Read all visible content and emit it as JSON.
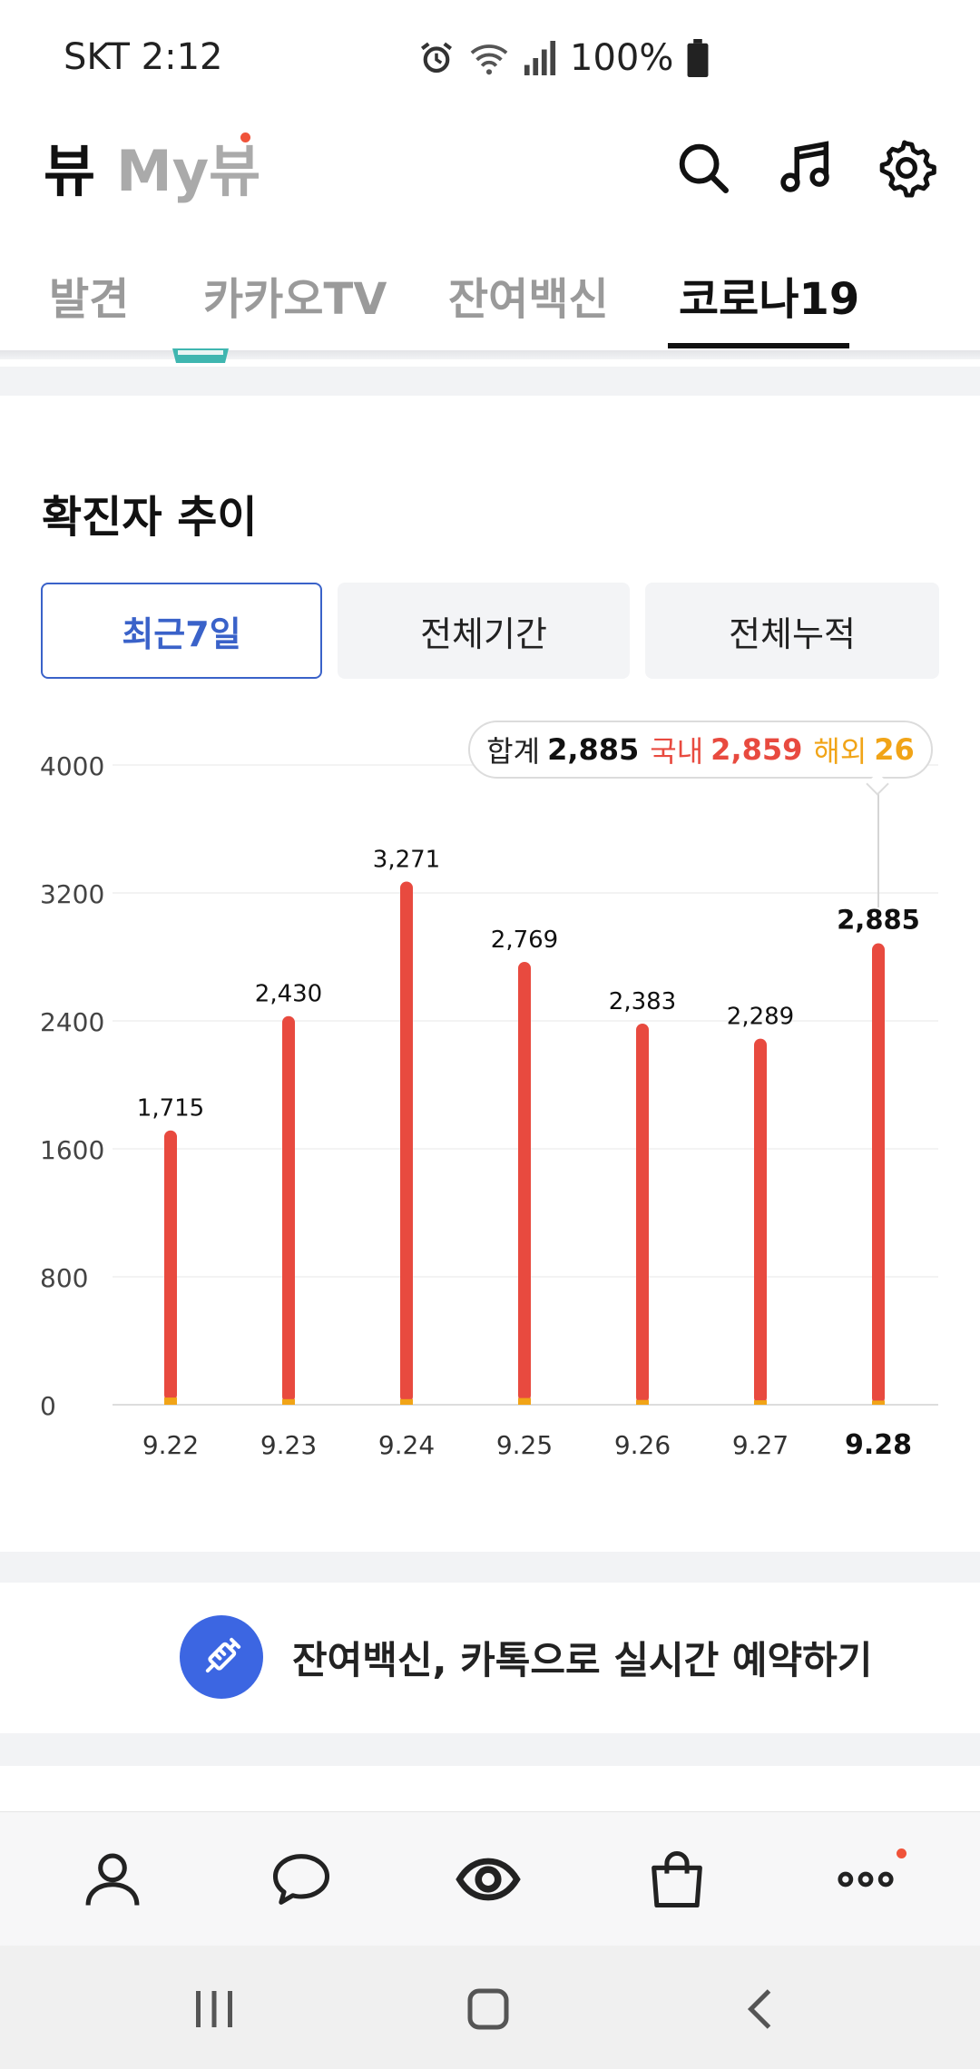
{
  "status_bar": {
    "carrier_time": "SKT 2:12",
    "battery": "100%"
  },
  "header": {
    "brand": "뷰",
    "my_brand": "My뷰",
    "icons": [
      "search-icon",
      "music-icon",
      "settings-icon"
    ]
  },
  "tabs": [
    {
      "label": "발견",
      "active": false
    },
    {
      "label": "카카오TV",
      "active": false
    },
    {
      "label": "잔여백신",
      "active": false
    },
    {
      "label": "코로나19",
      "active": true
    }
  ],
  "section": {
    "title": "확진자 추이",
    "segments": [
      {
        "label": "최근7일",
        "active": true
      },
      {
        "label": "전체기간",
        "active": false
      },
      {
        "label": "전체누적",
        "active": false
      }
    ]
  },
  "tooltip": {
    "total_label": "합계",
    "total_value": "2,885",
    "domestic_label": "국내",
    "domestic_value": "2,859",
    "overseas_label": "해외",
    "overseas_value": "26"
  },
  "chart_data": {
    "type": "bar",
    "categories": [
      "9.22",
      "9.23",
      "9.24",
      "9.25",
      "9.26",
      "9.27",
      "9.28"
    ],
    "value_labels": [
      "1,715",
      "2,430",
      "3,271",
      "2,769",
      "2,383",
      "2,289",
      "2,885"
    ],
    "values": [
      1715,
      2430,
      3271,
      2769,
      2383,
      2289,
      2885
    ],
    "stacked": true,
    "series": [
      {
        "name": "국내",
        "values": [
          1670,
          2395,
          3236,
          2727,
          2353,
          2261,
          2859
        ]
      },
      {
        "name": "해외",
        "values": [
          45,
          35,
          35,
          42,
          30,
          28,
          26
        ]
      }
    ],
    "yticks": [
      "0",
      "800",
      "1600",
      "2400",
      "3200",
      "4000"
    ],
    "ylim": [
      0,
      4000
    ],
    "highlight_index": 6,
    "colors": {
      "domestic": "#e84a3f",
      "overseas": "#f1a417",
      "grid": "#efefef",
      "axis": "#dddddd"
    }
  },
  "banner": {
    "text": "잔여백신, 카톡으로 실시간 예약하기",
    "icon": "syringe-icon"
  },
  "bottom_nav": [
    "person-icon",
    "chat-bubble-icon",
    "view-eye-icon",
    "shopping-bag-icon",
    "more-dots-icon"
  ],
  "system_nav": [
    "recents-icon",
    "home-icon",
    "back-icon"
  ]
}
